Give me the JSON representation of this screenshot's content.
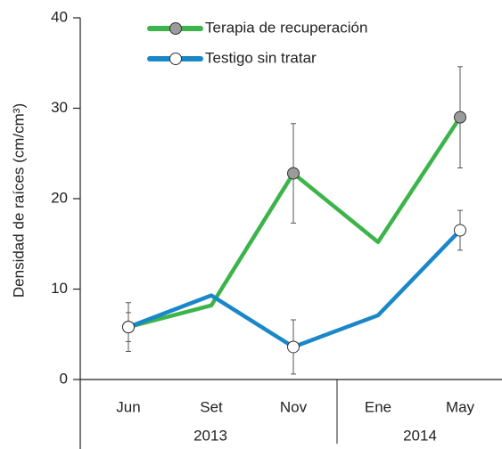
{
  "chart_data": {
    "type": "line",
    "y_label": "Densidad de raíces (cm/cm³)",
    "categories": [
      "Jun",
      "Set",
      "Nov",
      "Ene",
      "May"
    ],
    "groups": [
      "2013",
      "2014"
    ],
    "ylim": [
      0,
      40
    ],
    "yticks": [
      0,
      10,
      20,
      30,
      40
    ],
    "series": [
      {
        "name": "Terapia de recuperación",
        "color": "#3cb44b",
        "marker_color": "#9b9b9b",
        "values": [
          5.8,
          8.2,
          22.8,
          15.2,
          29
        ],
        "errors": [
          1.6,
          null,
          5.5,
          null,
          5.6
        ]
      },
      {
        "name": "Testigo sin tratar",
        "color": "#1a87c9",
        "marker_color": "#ffffff",
        "values": [
          5.8,
          9.3,
          3.6,
          7.1,
          16.5
        ],
        "errors": [
          2.7,
          null,
          3.0,
          null,
          2.2
        ]
      }
    ]
  }
}
